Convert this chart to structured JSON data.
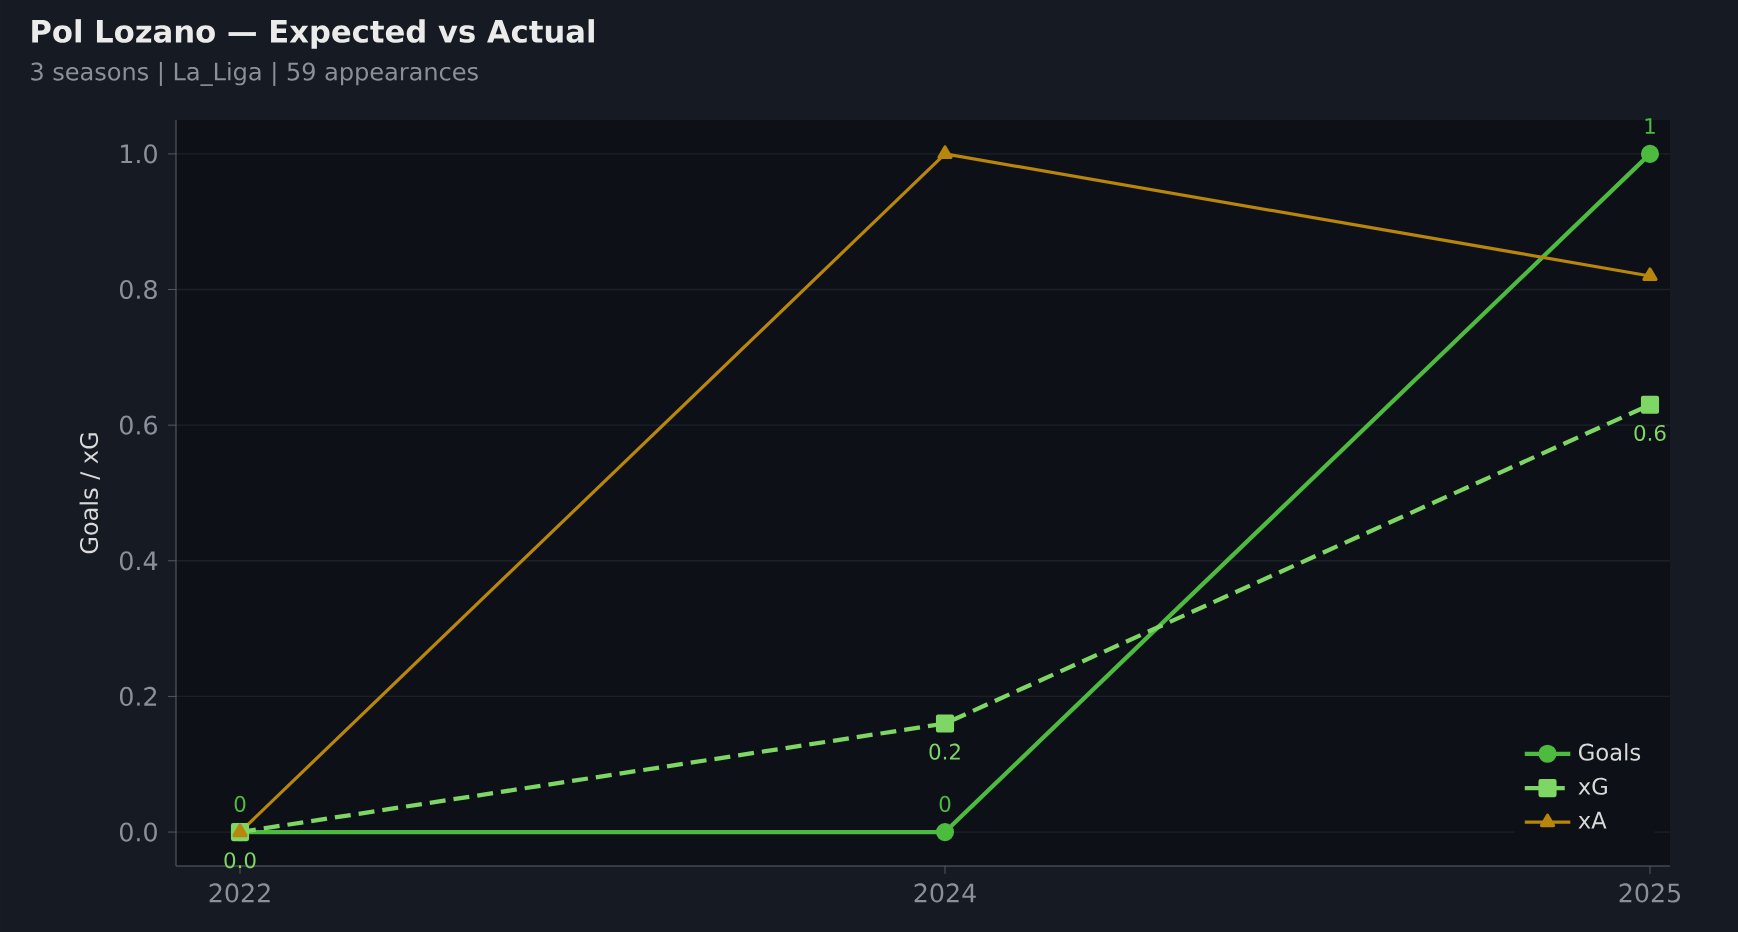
{
  "chart_data": {
    "type": "line",
    "title": "Pol Lozano — Expected vs Actual",
    "subtitle": "3 seasons | La_Liga | 59 appearances",
    "ylabel": "Goals / xG",
    "categories": [
      "2022",
      "2024",
      "2025"
    ],
    "series": [
      {
        "name": "Goals",
        "color": "#4cbb3f",
        "values": [
          0,
          0,
          1
        ],
        "marker": "circle",
        "line_style": "solid",
        "value_labels": [
          "0",
          "0",
          "1"
        ]
      },
      {
        "name": "xG",
        "color": "#7ed664",
        "values": [
          0,
          0.16,
          0.63
        ],
        "marker": "square",
        "line_style": "dashed",
        "value_labels": [
          "0.0",
          "0.2",
          "0.6"
        ]
      },
      {
        "name": "xA",
        "color": "#b8860b",
        "values": [
          0,
          1.0,
          0.82
        ],
        "marker": "triangle",
        "line_style": "solid"
      }
    ],
    "ylim": [
      -0.05,
      1.05
    ],
    "yticks": [
      {
        "value": 0,
        "label": "0.0"
      },
      {
        "value": 0.2,
        "label": "0.2"
      },
      {
        "value": 0.4,
        "label": "0.4"
      },
      {
        "value": 0.6,
        "label": "0.6"
      },
      {
        "value": 0.8,
        "label": "0.8"
      },
      {
        "value": 1.0,
        "label": "1.0"
      }
    ],
    "grid": "y",
    "legend": "bottom right"
  }
}
